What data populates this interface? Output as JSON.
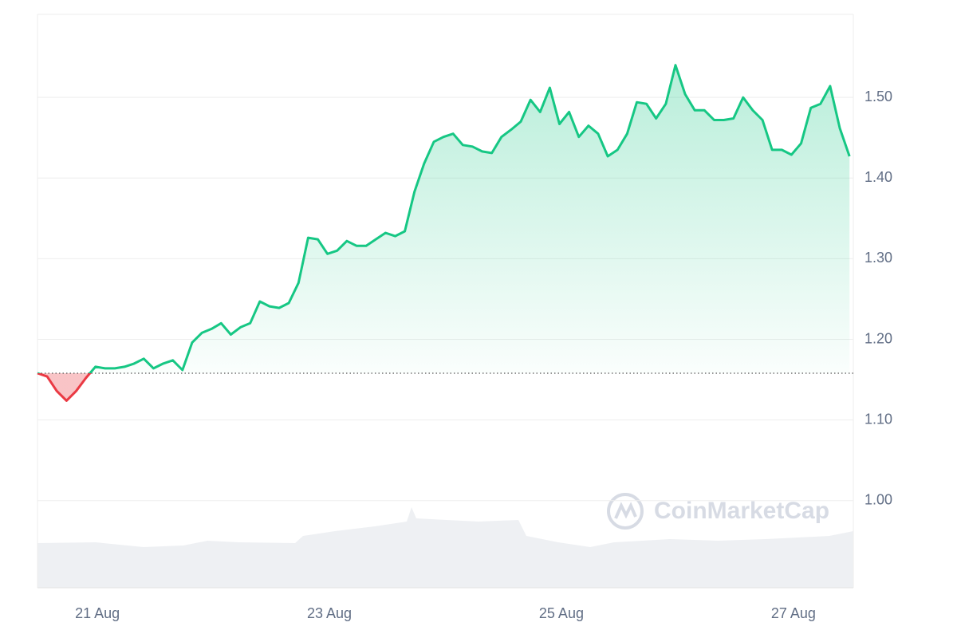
{
  "chart_data": {
    "type": "line",
    "values": [
      1.158,
      1.154,
      1.136,
      1.124,
      1.136,
      1.152,
      1.166,
      1.164,
      1.164,
      1.166,
      1.17,
      1.176,
      1.164,
      1.17,
      1.174,
      1.162,
      1.196,
      1.208,
      1.213,
      1.22,
      1.206,
      1.215,
      1.22,
      1.247,
      1.241,
      1.239,
      1.245,
      1.27,
      1.326,
      1.324,
      1.306,
      1.31,
      1.322,
      1.316,
      1.316,
      1.324,
      1.332,
      1.328,
      1.334,
      1.383,
      1.418,
      1.445,
      1.451,
      1.455,
      1.441,
      1.439,
      1.433,
      1.431,
      1.451,
      1.46,
      1.47,
      1.497,
      1.482,
      1.512,
      1.467,
      1.482,
      1.451,
      1.465,
      1.455,
      1.427,
      1.435,
      1.455,
      1.494,
      1.492,
      1.474,
      1.492,
      1.54,
      1.504,
      1.484,
      1.484,
      1.472,
      1.472,
      1.474,
      1.5,
      1.484,
      1.472,
      1.435,
      1.435,
      1.429,
      1.443,
      1.487,
      1.492,
      1.514,
      1.462,
      1.427
    ],
    "baseline": 1.158,
    "up_color": "#16c784",
    "down_color": "#ea3943",
    "xlim": [
      0,
      84.4
    ],
    "xticks": [
      {
        "value": 6.2,
        "label": "21 Aug"
      },
      {
        "value": 30.2,
        "label": "23 Aug"
      },
      {
        "value": 54.2,
        "label": "25 Aug"
      },
      {
        "value": 78.2,
        "label": "27 Aug"
      }
    ],
    "ylim": [
      0.892,
      1.603
    ],
    "yticks": [
      {
        "value": 1,
        "label": "1.00"
      },
      {
        "value": 1.1,
        "label": "1.10"
      },
      {
        "value": 1.2,
        "label": "1.20"
      },
      {
        "value": 1.3,
        "label": "1.30"
      },
      {
        "value": 1.4,
        "label": "1.40"
      },
      {
        "value": 1.5,
        "label": "1.50"
      }
    ],
    "grid": true,
    "watermark": "CoinMarketCap"
  }
}
